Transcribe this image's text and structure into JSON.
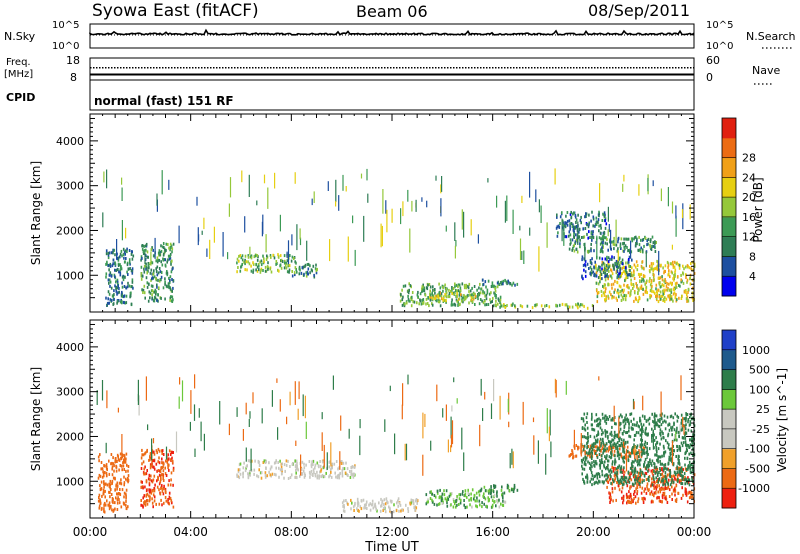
{
  "header": {
    "station": "Syowa East (fitACF)",
    "beam": "Beam 06",
    "date": "08/Sep/2011"
  },
  "top_panels": {
    "nsky_label": "N.Sky",
    "nsky_ticks": [
      "10^5",
      "10^0"
    ],
    "nsearch_label": "N.Search",
    "nsearch_ticks": [
      "10^5",
      "10^0"
    ],
    "freq_label": "Freq.",
    "freq_unit": "[MHz]",
    "freq_ticks": [
      "18",
      "8"
    ],
    "nave_label": "Nave",
    "nave_ticks": [
      "60",
      "0"
    ],
    "cpid_label": "CPID",
    "cpid_text": "normal (fast) 151 RF"
  },
  "colors": {
    "power": [
      "#0000ee",
      "#1d4fa0",
      "#2e7d55",
      "#3c9a55",
      "#95c83a",
      "#e6cf12",
      "#f0a018",
      "#ec6c14",
      "#e02010"
    ],
    "velocity": [
      "#ee2010",
      "#ec6a14",
      "#f0a02a",
      "#c8c8c0",
      "#c8c8c0",
      "#6cc83a",
      "#2e7d4a",
      "#1e5a8c",
      "#2040c8"
    ]
  },
  "chart_data": [
    {
      "type": "heatmap",
      "title": "Power",
      "ylabel": "Slant Range [km]",
      "xlabel": "",
      "x_ticks": [
        "00:00",
        "04:00",
        "08:00",
        "12:00",
        "16:00",
        "20:00",
        "00:00"
      ],
      "y_ticks": [
        "1000",
        "2000",
        "3000",
        "4000"
      ],
      "ylim": [
        180,
        4600
      ],
      "xlim_hours": [
        0,
        24
      ],
      "colorbar": {
        "label": "Power [dB]",
        "ticks": [
          "4",
          "8",
          "12",
          "16",
          "20",
          "24",
          "28"
        ],
        "range": [
          0,
          32
        ]
      },
      "regions": [
        {
          "t": [
            0.6,
            1.7
          ],
          "r": [
            300,
            1600
          ],
          "v": 10
        },
        {
          "t": [
            2.0,
            3.3
          ],
          "r": [
            400,
            1700
          ],
          "v": 12
        },
        {
          "t": [
            5.8,
            8.2
          ],
          "r": [
            1050,
            1450
          ],
          "v": 16
        },
        {
          "t": [
            8.0,
            9.0
          ],
          "r": [
            950,
            1250
          ],
          "v": 11
        },
        {
          "t": [
            12.3,
            16.3
          ],
          "r": [
            300,
            800
          ],
          "v": 14
        },
        {
          "t": [
            13.3,
            15.3
          ],
          "r": [
            400,
            600
          ],
          "v": 21
        },
        {
          "t": [
            15.5,
            17.0
          ],
          "r": [
            750,
            900
          ],
          "v": 10
        },
        {
          "t": [
            16.0,
            20.0
          ],
          "r": [
            250,
            350
          ],
          "v": 18
        },
        {
          "t": [
            20.0,
            24.0
          ],
          "r": [
            400,
            1300
          ],
          "v": 21
        },
        {
          "t": [
            19.0,
            22.5
          ],
          "r": [
            1500,
            1850
          ],
          "v": 12
        },
        {
          "t": [
            18.5,
            20.5
          ],
          "r": [
            1800,
            2400
          ],
          "v": 9
        },
        {
          "t": [
            19.5,
            21.5
          ],
          "r": [
            900,
            1400
          ],
          "v": 9
        }
      ]
    },
    {
      "type": "heatmap",
      "title": "Velocity",
      "ylabel": "Slant Range [km]",
      "xlabel": "Time UT",
      "x_ticks": [
        "00:00",
        "04:00",
        "08:00",
        "12:00",
        "16:00",
        "20:00",
        "00:00"
      ],
      "y_ticks": [
        "1000",
        "2000",
        "3000",
        "4000"
      ],
      "ylim": [
        180,
        4600
      ],
      "xlim_hours": [
        0,
        24
      ],
      "colorbar": {
        "label": "Velocity [m s^-1]",
        "ticks": [
          "1000",
          "500",
          "100",
          "25",
          "-25",
          "-100",
          "-500",
          "-1000"
        ],
        "range": [
          -1000,
          1000
        ]
      },
      "regions": [
        {
          "t": [
            0.3,
            1.5
          ],
          "r": [
            300,
            1600
          ],
          "v": -300
        },
        {
          "t": [
            2.0,
            3.3
          ],
          "r": [
            400,
            1700
          ],
          "v": -450
        },
        {
          "t": [
            5.8,
            10.5
          ],
          "r": [
            1050,
            1450
          ],
          "v": 0
        },
        {
          "t": [
            10.0,
            13.0
          ],
          "r": [
            300,
            600
          ],
          "v": 0
        },
        {
          "t": [
            13.3,
            16.5
          ],
          "r": [
            400,
            800
          ],
          "v": 80
        },
        {
          "t": [
            15.5,
            17.0
          ],
          "r": [
            750,
            900
          ],
          "v": 150
        },
        {
          "t": [
            19.0,
            22.0
          ],
          "r": [
            1500,
            1800
          ],
          "v": -300
        },
        {
          "t": [
            20.5,
            24.0
          ],
          "r": [
            500,
            1300
          ],
          "v": -450
        },
        {
          "t": [
            19.5,
            24.0
          ],
          "r": [
            900,
            2500
          ],
          "v": 250
        }
      ]
    }
  ]
}
